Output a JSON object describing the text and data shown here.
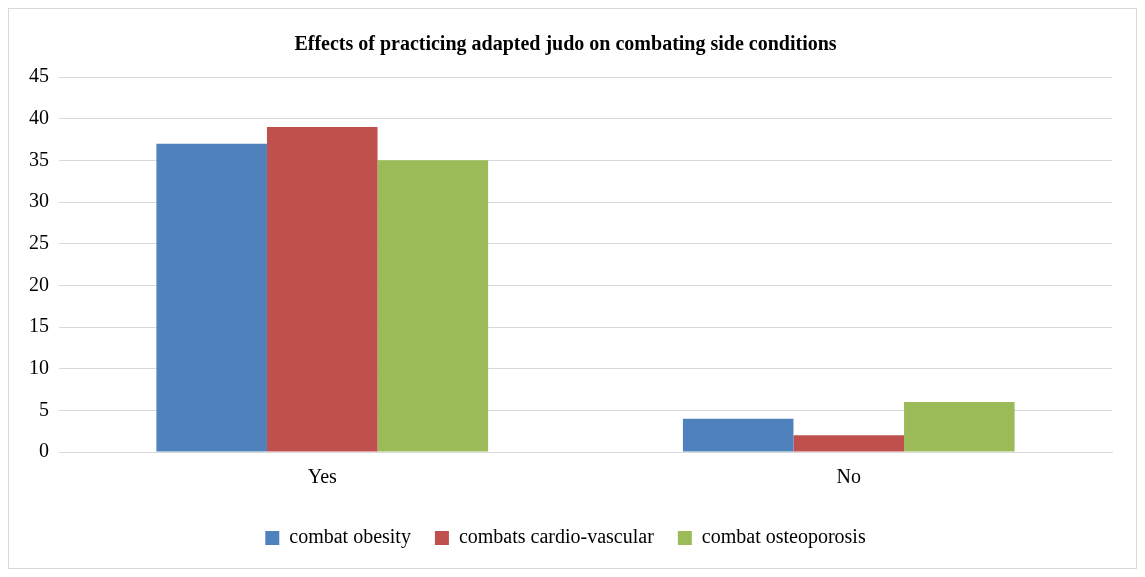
{
  "chart_data": {
    "type": "bar",
    "title": "Effects of practicing adapted judo on combating side conditions",
    "categories": [
      "Yes",
      "No"
    ],
    "series": [
      {
        "name": "combat obesity",
        "color": "#4f81bd",
        "values": [
          37,
          4
        ]
      },
      {
        "name": "combats cardio-vascular",
        "color": "#c0504d",
        "values": [
          39,
          2
        ]
      },
      {
        "name": "combat osteoporosis",
        "color": "#9bbb59",
        "values": [
          35,
          6
        ]
      }
    ],
    "ylim": [
      0,
      45
    ],
    "yticks": [
      0,
      5,
      10,
      15,
      20,
      25,
      30,
      35,
      40,
      45
    ],
    "grid": "y",
    "legend": "bottom"
  }
}
